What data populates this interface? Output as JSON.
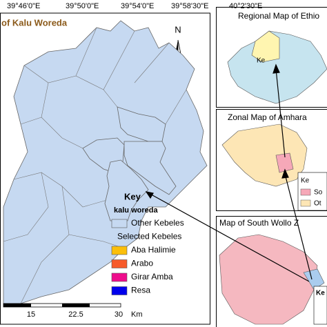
{
  "coordinates": [
    "39°46'0\"E",
    "39°50'0\"E",
    "39°54'0\"E",
    "39°58'30\"E",
    "40°2'30\"E"
  ],
  "main_map": {
    "title": "of Kalu Woreda",
    "north": "N",
    "key": {
      "title": "Key",
      "subtitle": "kalu woreda",
      "items": [
        {
          "label": "Other Kebeles",
          "color": "#c6d9f1"
        },
        {
          "label": "Selected Kebeles"
        },
        {
          "label": "Aba Halimie",
          "color": "#fbbf0b"
        },
        {
          "label": "Arabo",
          "color": "#f75a2a"
        },
        {
          "label": "Girar Amba",
          "color": "#ee0d8c"
        },
        {
          "label": "Resa",
          "color": "#0000ec"
        }
      ]
    },
    "scale": {
      "labels": [
        "15",
        "22.5",
        "30"
      ],
      "unit": "Km"
    }
  },
  "insets": [
    {
      "title": "Regional Map of Ethio",
      "key": "Ke"
    },
    {
      "title": "Zonal Map of Amhara",
      "key": "Ke",
      "items": [
        "So",
        "Ot"
      ]
    },
    {
      "title": "Map of South Wollo Z",
      "key": "Ke"
    }
  ]
}
